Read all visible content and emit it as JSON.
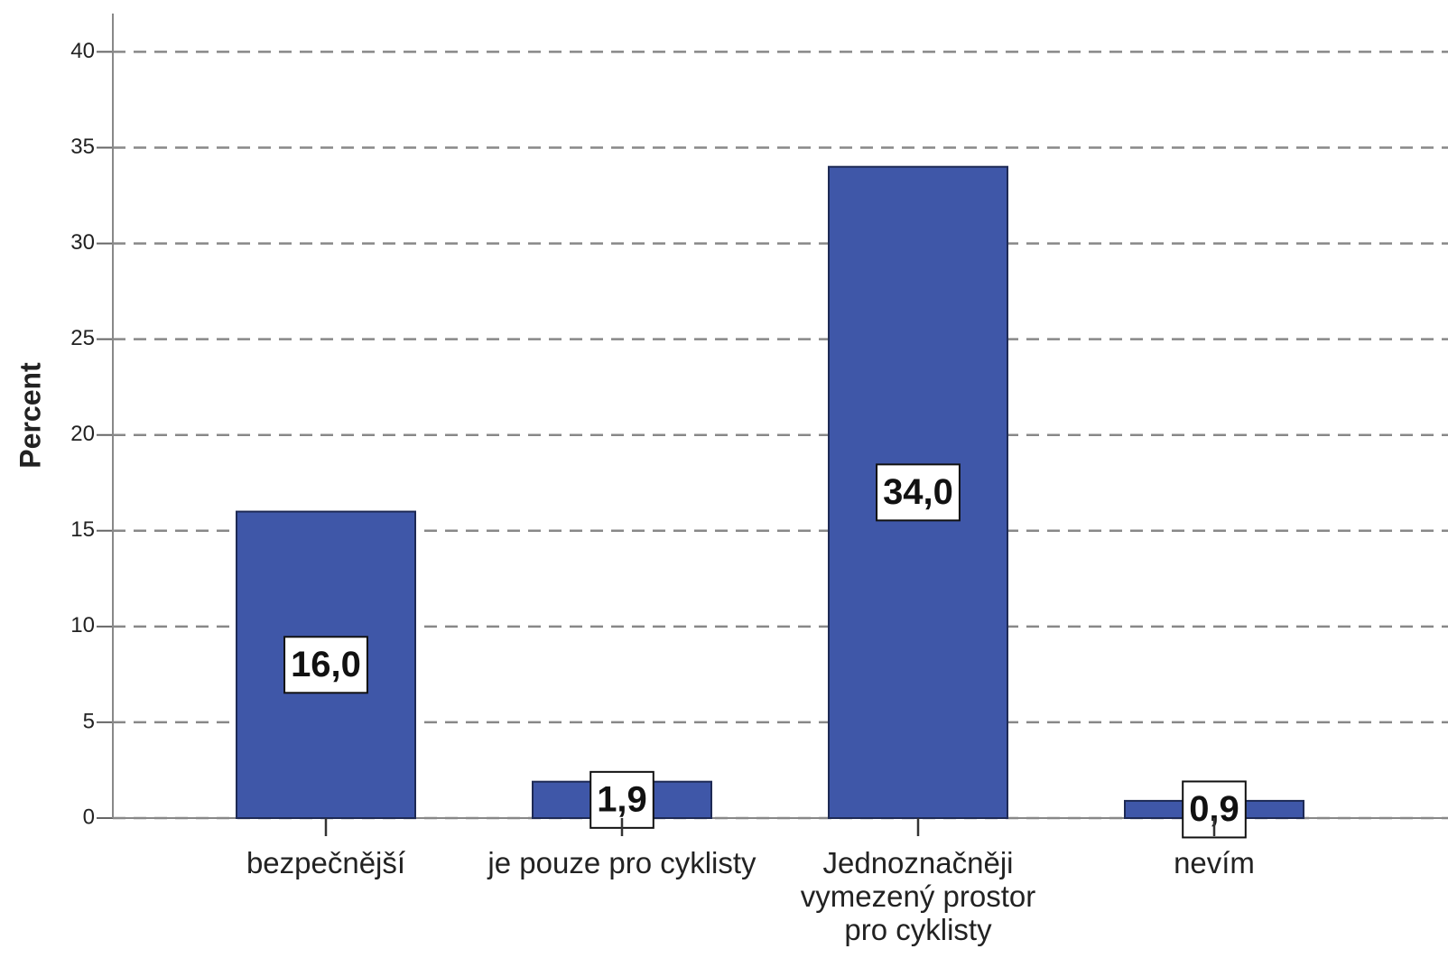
{
  "chart_data": {
    "type": "bar",
    "y_label": "Percent",
    "categories": [
      "bezpečnější",
      "je pouze pro cyklisty",
      "Jednoznačněji vymezený prostor pro cyklisty",
      "nevím"
    ],
    "values": [
      16.0,
      1.9,
      34.0,
      0.9
    ],
    "value_labels": [
      "16,0",
      "1,9",
      "34,0",
      "0,9"
    ],
    "color": "#3f57a8",
    "ylim": [
      0,
      42
    ],
    "yticks": [
      0,
      5,
      10,
      15,
      20,
      25,
      30,
      35,
      40
    ],
    "grid": true
  }
}
